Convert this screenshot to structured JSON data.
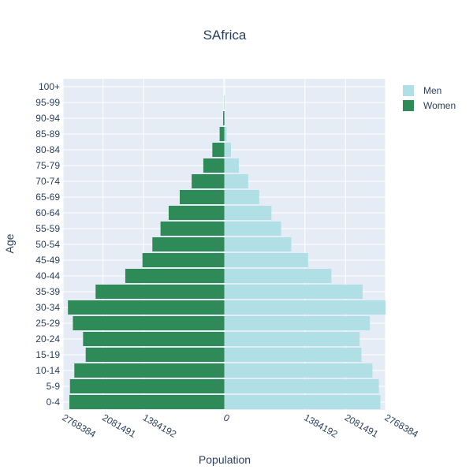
{
  "chart_data": {
    "type": "bar",
    "orientation": "horizontal",
    "title": "SAfrica",
    "xlabel": "Population",
    "ylabel": "Age",
    "categories": [
      "0-4",
      "5-9",
      "10-14",
      "15-19",
      "20-24",
      "25-29",
      "30-34",
      "35-39",
      "40-44",
      "45-49",
      "50-54",
      "55-59",
      "60-64",
      "65-69",
      "70-74",
      "75-79",
      "80-84",
      "85-89",
      "90-94",
      "95-99",
      "100+"
    ],
    "series": [
      {
        "name": "Men",
        "color": "#b0e0e6",
        "values": [
          2680000,
          2655000,
          2545000,
          2355000,
          2325000,
          2500000,
          2768384,
          2375000,
          1840000,
          1440000,
          1150000,
          975000,
          810000,
          600000,
          410000,
          250000,
          115000,
          38000,
          10000,
          2000,
          500
        ]
      },
      {
        "name": "Women",
        "color": "#2e8b57",
        "values": [
          -2660000,
          -2650000,
          -2575000,
          -2380000,
          -2425000,
          -2600000,
          -2685000,
          -2210000,
          -1700000,
          -1405000,
          -1235000,
          -1095000,
          -955000,
          -765000,
          -560000,
          -360000,
          -205000,
          -80000,
          -20000,
          -3000,
          -500
        ]
      }
    ],
    "xticks": [
      {
        "value": -2768384,
        "label": "2768384"
      },
      {
        "value": -2081491,
        "label": "2081491"
      },
      {
        "value": -1384192,
        "label": "1384192"
      },
      {
        "value": 0,
        "label": "0"
      },
      {
        "value": 1384192,
        "label": "1384192"
      },
      {
        "value": 2081491,
        "label": "2081491"
      },
      {
        "value": 2768384,
        "label": "2768384"
      }
    ],
    "xlim": [
      -2768384,
      2768384
    ],
    "grid": true,
    "legend_position": "top-right",
    "bar_mode": "overlay"
  }
}
